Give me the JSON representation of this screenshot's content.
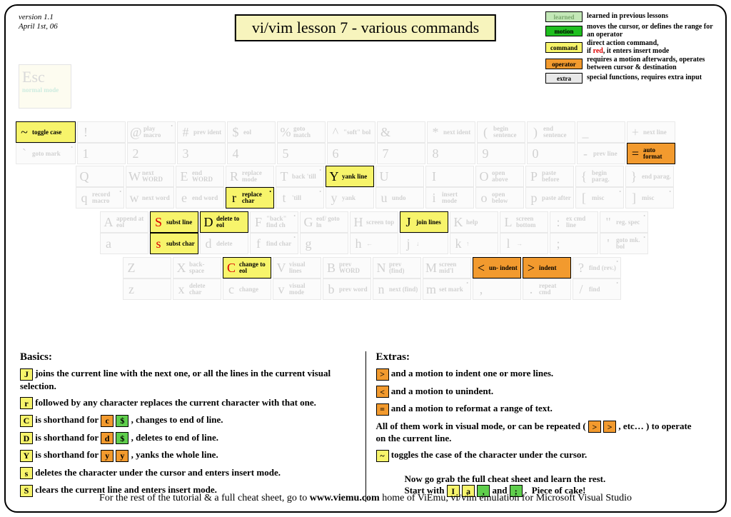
{
  "meta": {
    "version": "version 1.1",
    "date": "April 1st, 06"
  },
  "title": "vi/vim lesson 7 - various commands",
  "legend": [
    {
      "label": "learned",
      "bg": "#c3e8b7",
      "fg": "#7aa86e",
      "text": "learned in previous lessons"
    },
    {
      "label": "motion",
      "bg": "#1fbf1f",
      "fg": "#000",
      "text": "moves the cursor, or defines the range for an operator"
    },
    {
      "label": "command",
      "bg": "#f7f46b",
      "fg": "#000",
      "text": "direct action command,<br>if <span class='red'>red</span>, it enters insert mode"
    },
    {
      "label": "operator",
      "bg": "#f29a2e",
      "fg": "#000",
      "text": "requires a motion afterwards, operates between cursor & destination"
    },
    {
      "label": "extra",
      "bg": "#e8e8e8",
      "fg": "#000",
      "text": "special functions, requires extra input"
    }
  ],
  "esc": {
    "glyph": "Esc",
    "label": "normal mode"
  },
  "rows": [
    {
      "offset": 0,
      "keys": [
        {
          "wide": true,
          "top": {
            "g": "~",
            "l": "toggle case",
            "cls": "c-command",
            "active": true
          },
          "bot": {
            "g": "`",
            "l": "goto mark",
            "cls": "",
            "active": false,
            "dot": true
          }
        },
        {
          "top": {
            "g": "!",
            "l": "",
            "active": false
          },
          "bot": {
            "g": "1",
            "l": "",
            "active": false
          }
        },
        {
          "top": {
            "g": "@",
            "l": "play macro",
            "active": false,
            "dot": true
          },
          "bot": {
            "g": "2",
            "l": "",
            "active": false
          }
        },
        {
          "top": {
            "g": "#",
            "l": "prev ident",
            "active": false
          },
          "bot": {
            "g": "3",
            "l": "",
            "active": false
          }
        },
        {
          "top": {
            "g": "$",
            "l": "eol",
            "active": false
          },
          "bot": {
            "g": "4",
            "l": "",
            "active": false
          }
        },
        {
          "top": {
            "g": "%",
            "l": "goto match",
            "active": false
          },
          "bot": {
            "g": "5",
            "l": "",
            "active": false
          }
        },
        {
          "top": {
            "g": "^",
            "l": "\"soft\" bol",
            "active": false
          },
          "bot": {
            "g": "6",
            "l": "",
            "active": false
          }
        },
        {
          "top": {
            "g": "&",
            "l": "",
            "active": false
          },
          "bot": {
            "g": "7",
            "l": "",
            "active": false
          }
        },
        {
          "top": {
            "g": "*",
            "l": "next ident",
            "active": false
          },
          "bot": {
            "g": "8",
            "l": "",
            "active": false
          }
        },
        {
          "top": {
            "g": "(",
            "l": "begin sentence",
            "active": false
          },
          "bot": {
            "g": "9",
            "l": "",
            "active": false
          }
        },
        {
          "top": {
            "g": ")",
            "l": "end sentence",
            "active": false
          },
          "bot": {
            "g": "0",
            "l": "",
            "active": false
          }
        },
        {
          "top": {
            "g": "_",
            "l": "",
            "active": false
          },
          "bot": {
            "g": "-",
            "l": "prev line",
            "active": false
          }
        },
        {
          "top": {
            "g": "+",
            "l": "next line",
            "active": false
          },
          "bot": {
            "g": "=",
            "l": "auto format",
            "cls": "c-operator",
            "active": true
          }
        }
      ]
    },
    {
      "offset": 84,
      "keys": [
        {
          "top": {
            "g": "Q",
            "l": "",
            "active": false
          },
          "bot": {
            "g": "q",
            "l": "record macro",
            "active": false,
            "dot": true
          }
        },
        {
          "top": {
            "g": "W",
            "l": "next WORD",
            "active": false
          },
          "bot": {
            "g": "w",
            "l": "next word",
            "active": false
          }
        },
        {
          "top": {
            "g": "E",
            "l": "end WORD",
            "active": false
          },
          "bot": {
            "g": "e",
            "l": "end word",
            "active": false
          }
        },
        {
          "top": {
            "g": "R",
            "l": "replace mode",
            "active": false
          },
          "bot": {
            "g": "r",
            "l": "replace char",
            "cls": "c-command",
            "active": true,
            "dot": true
          }
        },
        {
          "top": {
            "g": "T",
            "l": "back 'till",
            "active": false,
            "dot": true
          },
          "bot": {
            "g": "t",
            "l": "'till",
            "active": false,
            "dot": true
          }
        },
        {
          "top": {
            "g": "Y",
            "l": "yank line",
            "cls": "c-command",
            "active": true
          },
          "bot": {
            "g": "y",
            "l": "yank",
            "active": false
          }
        },
        {
          "top": {
            "g": "U",
            "l": "",
            "active": false
          },
          "bot": {
            "g": "u",
            "l": "undo",
            "active": false
          }
        },
        {
          "top": {
            "g": "I",
            "l": "",
            "active": false
          },
          "bot": {
            "g": "i",
            "l": "insert mode",
            "active": false
          }
        },
        {
          "top": {
            "g": "O",
            "l": "open above",
            "active": false
          },
          "bot": {
            "g": "o",
            "l": "open below",
            "active": false
          }
        },
        {
          "top": {
            "g": "P",
            "l": "paste before",
            "active": false
          },
          "bot": {
            "g": "p",
            "l": "paste after",
            "active": false
          }
        },
        {
          "top": {
            "g": "{",
            "l": "begin parag.",
            "active": false
          },
          "bot": {
            "g": "[",
            "l": "misc",
            "active": false,
            "dot": true
          }
        },
        {
          "top": {
            "g": "}",
            "l": "end parag.",
            "active": false
          },
          "bot": {
            "g": "]",
            "l": "misc",
            "active": false,
            "dot": true
          }
        }
      ]
    },
    {
      "offset": 118,
      "keys": [
        {
          "top": {
            "g": "A",
            "l": "append at eol",
            "active": false
          },
          "bot": {
            "g": "a",
            "l": "",
            "active": false
          }
        },
        {
          "top": {
            "g": "S",
            "l": "subst line",
            "cls": "c-command redtxt",
            "active": true
          },
          "bot": {
            "g": "s",
            "l": "subst char",
            "cls": "c-command redtxt",
            "active": true
          }
        },
        {
          "top": {
            "g": "D",
            "l": "delete to eol",
            "cls": "c-command",
            "active": true
          },
          "bot": {
            "g": "d",
            "l": "delete",
            "active": false
          }
        },
        {
          "top": {
            "g": "F",
            "l": "\"back\" find ch",
            "active": false,
            "dot": true
          },
          "bot": {
            "g": "f",
            "l": "find char",
            "active": false,
            "dot": true
          }
        },
        {
          "top": {
            "g": "G",
            "l": "eof/ goto ln",
            "active": false
          },
          "bot": {
            "g": "g",
            "l": "",
            "active": false
          }
        },
        {
          "top": {
            "g": "H",
            "l": "screen top",
            "active": false
          },
          "bot": {
            "g": "h",
            "l": "←",
            "active": false
          }
        },
        {
          "top": {
            "g": "J",
            "l": "join lines",
            "cls": "c-command",
            "active": true
          },
          "bot": {
            "g": "j",
            "l": "↓",
            "active": false
          }
        },
        {
          "top": {
            "g": "K",
            "l": "help",
            "active": false
          },
          "bot": {
            "g": "k",
            "l": "↑",
            "active": false
          }
        },
        {
          "top": {
            "g": "L",
            "l": "screen bottom",
            "active": false
          },
          "bot": {
            "g": "l",
            "l": "→",
            "active": false
          }
        },
        {
          "top": {
            "g": ":",
            "l": "ex cmd line",
            "active": false
          },
          "bot": {
            "g": ";",
            "l": "",
            "active": false
          }
        },
        {
          "top": {
            "g": "\"",
            "l": "reg. spec",
            "active": false,
            "dot": true
          },
          "bot": {
            "g": "'",
            "l": "goto mk. bol",
            "active": false,
            "dot": true
          }
        }
      ]
    },
    {
      "offset": 150,
      "keys": [
        {
          "top": {
            "g": "Z",
            "l": "",
            "active": false
          },
          "bot": {
            "g": "z",
            "l": "",
            "active": false
          }
        },
        {
          "top": {
            "g": "X",
            "l": "back- space",
            "active": false
          },
          "bot": {
            "g": "x",
            "l": "delete char",
            "active": false
          }
        },
        {
          "top": {
            "g": "C",
            "l": "change to eol",
            "cls": "c-command redtxt",
            "active": true
          },
          "bot": {
            "g": "c",
            "l": "change",
            "active": false
          }
        },
        {
          "top": {
            "g": "V",
            "l": "visual lines",
            "active": false
          },
          "bot": {
            "g": "v",
            "l": "visual mode",
            "active": false
          }
        },
        {
          "top": {
            "g": "B",
            "l": "prev WORD",
            "active": false
          },
          "bot": {
            "g": "b",
            "l": "prev word",
            "active": false
          }
        },
        {
          "top": {
            "g": "N",
            "l": "prev (find)",
            "active": false
          },
          "bot": {
            "g": "n",
            "l": "next (find)",
            "active": false
          }
        },
        {
          "top": {
            "g": "M",
            "l": "screen mid'l",
            "active": false
          },
          "bot": {
            "g": "m",
            "l": "set mark",
            "active": false,
            "dot": true
          }
        },
        {
          "top": {
            "g": "<",
            "l": "un- indent",
            "cls": "c-operator",
            "active": true
          },
          "bot": {
            "g": ",",
            "l": "",
            "active": false
          }
        },
        {
          "top": {
            "g": ">",
            "l": "indent",
            "cls": "c-operator",
            "active": true
          },
          "bot": {
            "g": ".",
            "l": "repeat cmd",
            "active": false
          }
        },
        {
          "top": {
            "g": "?",
            "l": "find (rev.)",
            "active": false,
            "dot": true
          },
          "bot": {
            "g": "/",
            "l": "find",
            "active": false,
            "dot": true
          }
        }
      ]
    }
  ],
  "basics_title": "Basics:",
  "extras_title": "Extras:",
  "basics": [
    "<span class='ik cmd'>J</span> joins the current line with the next one, or all the lines in the current visual selection.",
    "<span class='ik cmd'>r</span> followed by any character replaces the current character with that one.",
    "<span class='ik cmd'>C</span> is shorthand for <span class='ik op'>c</span> <span class='ik mo'>$</span> , changes to end of line.",
    "<span class='ik cmd'>D</span> is shorthand for <span class='ik op'>d</span> <span class='ik mo'>$</span> , deletes to end of line.",
    "<span class='ik cmd'>Y</span> is shorthand for <span class='ik op'>y</span> <span class='ik op'>y</span> , yanks the whole line.",
    "<span class='ik cmd'>s</span> deletes the character under the cursor and enters insert mode.",
    "<span class='ik cmd'>S</span> clears the current line and enters insert mode."
  ],
  "extras": [
    "<span class='ik op'>&gt;</span> and a motion to indent one or more lines.",
    "<span class='ik op'>&lt;</span> and a motion to unindent.",
    "<span class='ik op'>=</span> and a motion to reformat a range of text.",
    "All of them work in visual mode, or can be repeated ( <span class='ik op'>&gt;</span> <span class='ik op'>&gt;</span> , etc… ) to operate on the current line.",
    "<span class='ik cmd'>~</span> toggles the case of the character under the cursor."
  ],
  "callout": "Now go grab the full cheat sheet and learn the rest.<br>Start with <span class='ik cmd'>I</span> <span class='ik cmd'>a</span> <span class='ik mo'>,</span> and <span class='ik mo'>;</span> . &nbsp;Piece of cake!",
  "footer": "For the rest of the tutorial & a full cheat sheet, go to <b>www.viemu.com</b> home of ViEmu, vi/vim emulation for Microsoft Visual Studio"
}
